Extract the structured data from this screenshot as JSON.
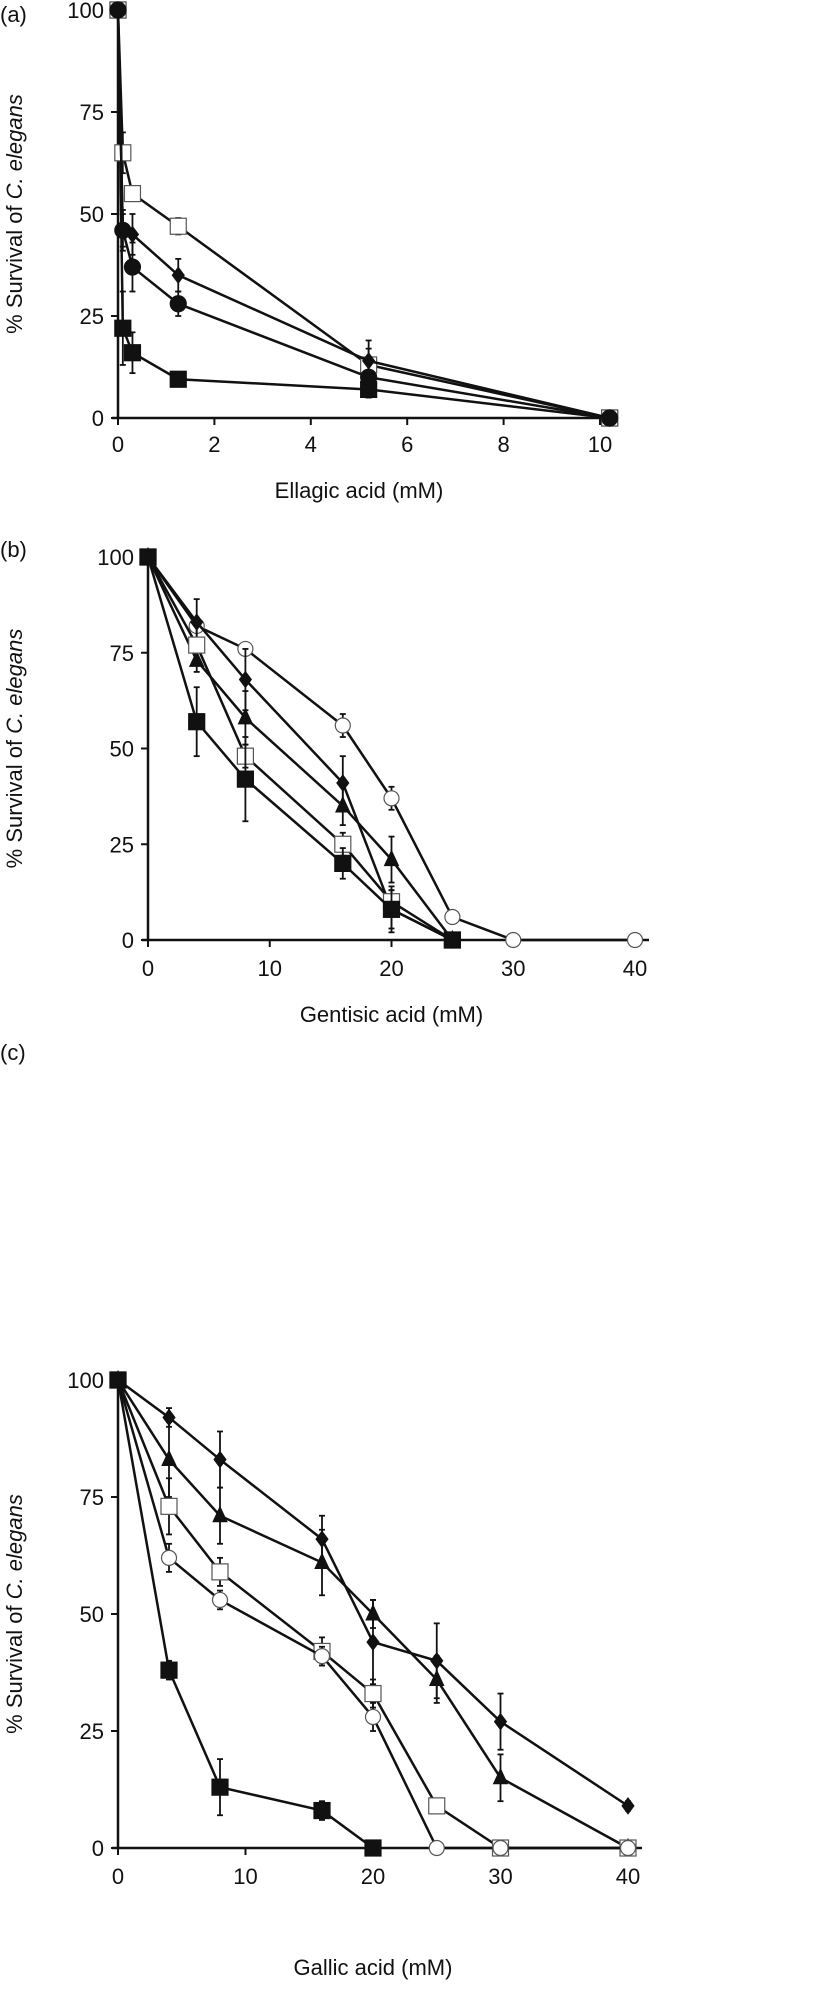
{
  "chart_data": [
    {
      "type": "line",
      "panel_label": "(a)",
      "xlabel": "Ellagic acid (mM)",
      "ylabel_prefix": "% Survival of ",
      "ylabel_italic": "C. elegans",
      "xlim": [
        0,
        10
      ],
      "ylim": [
        0,
        100
      ],
      "xticks": [
        "0",
        "2",
        "4",
        "6",
        "8",
        "10"
      ],
      "yticks": [
        "0",
        "25",
        "50",
        "75",
        "100"
      ],
      "series": [
        {
          "marker": "filled-square",
          "x": [
            0,
            0.1,
            0.3,
            1.25,
            5.2,
            10.2
          ],
          "y": [
            100,
            22,
            16,
            9.5,
            7,
            0
          ],
          "err": [
            0,
            9,
            5,
            0,
            2,
            0
          ]
        },
        {
          "marker": "open-square",
          "x": [
            0,
            0.1,
            0.3,
            1.25,
            5.2,
            10.2
          ],
          "y": [
            100,
            65,
            55,
            47,
            13,
            0
          ],
          "err": [
            0,
            5,
            0,
            2,
            4,
            0
          ]
        },
        {
          "marker": "filled-diamond",
          "x": [
            0,
            0.1,
            0.3,
            1.25,
            5.2,
            10.2
          ],
          "y": [
            100,
            46,
            45,
            35,
            14,
            0
          ],
          "err": [
            0,
            5,
            5,
            4,
            5,
            0
          ]
        },
        {
          "marker": "filled-circle",
          "x": [
            0,
            0.1,
            0.3,
            1.25,
            5.2,
            10.2
          ],
          "y": [
            100,
            46,
            37,
            28,
            10,
            0
          ],
          "err": [
            0,
            4,
            6,
            3,
            3,
            0
          ]
        }
      ]
    },
    {
      "type": "line",
      "panel_label": "(b)",
      "xlabel": "Gentisic acid (mM)",
      "ylabel_prefix": "% Survival of ",
      "ylabel_italic": "C. elegans",
      "xlim": [
        0,
        40
      ],
      "ylim": [
        0,
        100
      ],
      "xticks": [
        "0",
        "10",
        "20",
        "30",
        "40"
      ],
      "yticks": [
        "0",
        "25",
        "50",
        "75",
        "100"
      ],
      "series": [
        {
          "marker": "open-circle",
          "x": [
            0,
            4,
            8,
            16,
            20,
            25,
            30,
            40
          ],
          "y": [
            100,
            82,
            76,
            56,
            37,
            6,
            0,
            0
          ],
          "err": [
            0,
            0,
            0,
            3,
            3,
            0,
            0,
            0
          ]
        },
        {
          "marker": "filled-diamond",
          "x": [
            0,
            4,
            8,
            16,
            20,
            25
          ],
          "y": [
            100,
            83,
            68,
            41,
            8,
            0
          ],
          "err": [
            0,
            6,
            8,
            7,
            5,
            0
          ]
        },
        {
          "marker": "filled-triangle",
          "x": [
            0,
            4,
            8,
            16,
            20,
            25
          ],
          "y": [
            100,
            73,
            58,
            35,
            21,
            0
          ],
          "err": [
            0,
            3,
            7,
            5,
            6,
            0
          ]
        },
        {
          "marker": "open-square",
          "x": [
            0,
            4,
            8,
            16,
            20,
            25
          ],
          "y": [
            100,
            77,
            48,
            25,
            10,
            0
          ],
          "err": [
            0,
            5,
            3,
            3,
            3,
            0
          ]
        },
        {
          "marker": "filled-square",
          "x": [
            0,
            4,
            8,
            16,
            20,
            25
          ],
          "y": [
            100,
            57,
            42,
            20,
            8,
            0
          ],
          "err": [
            0,
            9,
            11,
            4,
            6,
            0
          ]
        }
      ]
    },
    {
      "type": "line",
      "panel_label": "(c)",
      "xlabel": "Gallic acid (mM)",
      "ylabel_prefix": "% Survival of ",
      "ylabel_italic": "C. elegans",
      "xlim": [
        0,
        40
      ],
      "ylim": [
        0,
        100
      ],
      "xticks": [
        "0",
        "10",
        "20",
        "30",
        "40"
      ],
      "yticks": [
        "0",
        "25",
        "50",
        "75",
        "100"
      ],
      "series": [
        {
          "marker": "filled-diamond",
          "x": [
            0,
            4,
            8,
            16,
            20,
            25,
            30,
            40
          ],
          "y": [
            100,
            92,
            83,
            66,
            44,
            40,
            27,
            9
          ],
          "err": [
            0,
            2,
            6,
            5,
            9,
            8,
            6,
            1
          ]
        },
        {
          "marker": "filled-triangle",
          "x": [
            0,
            4,
            8,
            16,
            20,
            25,
            30,
            40
          ],
          "y": [
            100,
            83,
            71,
            61,
            50,
            36,
            15,
            0
          ],
          "err": [
            0,
            8,
            6,
            7,
            3,
            5,
            5,
            0
          ]
        },
        {
          "marker": "open-square",
          "x": [
            0,
            4,
            8,
            16,
            20,
            25,
            30,
            40
          ],
          "y": [
            100,
            73,
            59,
            42,
            33,
            9,
            0,
            0
          ],
          "err": [
            0,
            6,
            3,
            3,
            3,
            0,
            0,
            0
          ]
        },
        {
          "marker": "open-circle",
          "x": [
            0,
            4,
            8,
            16,
            20,
            25,
            30,
            40
          ],
          "y": [
            100,
            62,
            53,
            41,
            28,
            0,
            0,
            0
          ],
          "err": [
            0,
            3,
            2,
            2,
            3,
            0,
            0,
            0
          ]
        },
        {
          "marker": "filled-square",
          "x": [
            0,
            4,
            8,
            16,
            20
          ],
          "y": [
            100,
            38,
            13,
            8,
            0
          ],
          "err": [
            0,
            2,
            6,
            2,
            0
          ]
        }
      ]
    }
  ]
}
